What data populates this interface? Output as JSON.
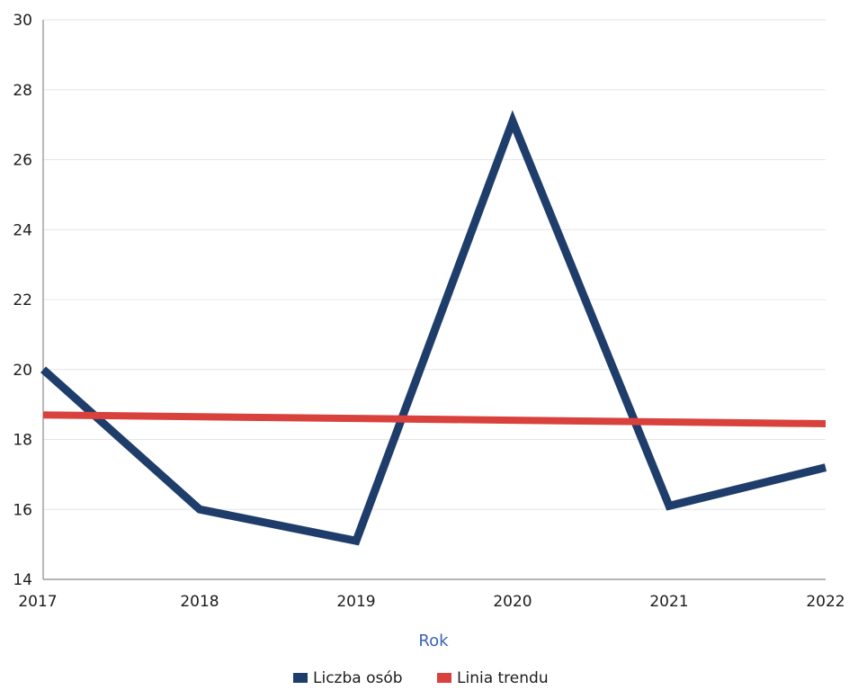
{
  "chart_data": {
    "type": "line",
    "categories": [
      "2017",
      "2018",
      "2019",
      "2020",
      "2021",
      "2022"
    ],
    "series": [
      {
        "name": "Liczba osób",
        "values": [
          20,
          16,
          15.1,
          27.1,
          16.1,
          17.2
        ],
        "color": "#1f3d6b"
      },
      {
        "name": "Linia trendu",
        "values": [
          18.7,
          18.65,
          18.6,
          18.55,
          18.5,
          18.45
        ],
        "color": "#d9413c"
      }
    ],
    "xlabel": "Rok",
    "ylabel": "",
    "ylim": [
      14,
      30
    ],
    "yticks": [
      "14",
      "16",
      "18",
      "20",
      "22",
      "24",
      "26",
      "28",
      "30"
    ],
    "grid": true,
    "legend_position": "bottom-center"
  }
}
